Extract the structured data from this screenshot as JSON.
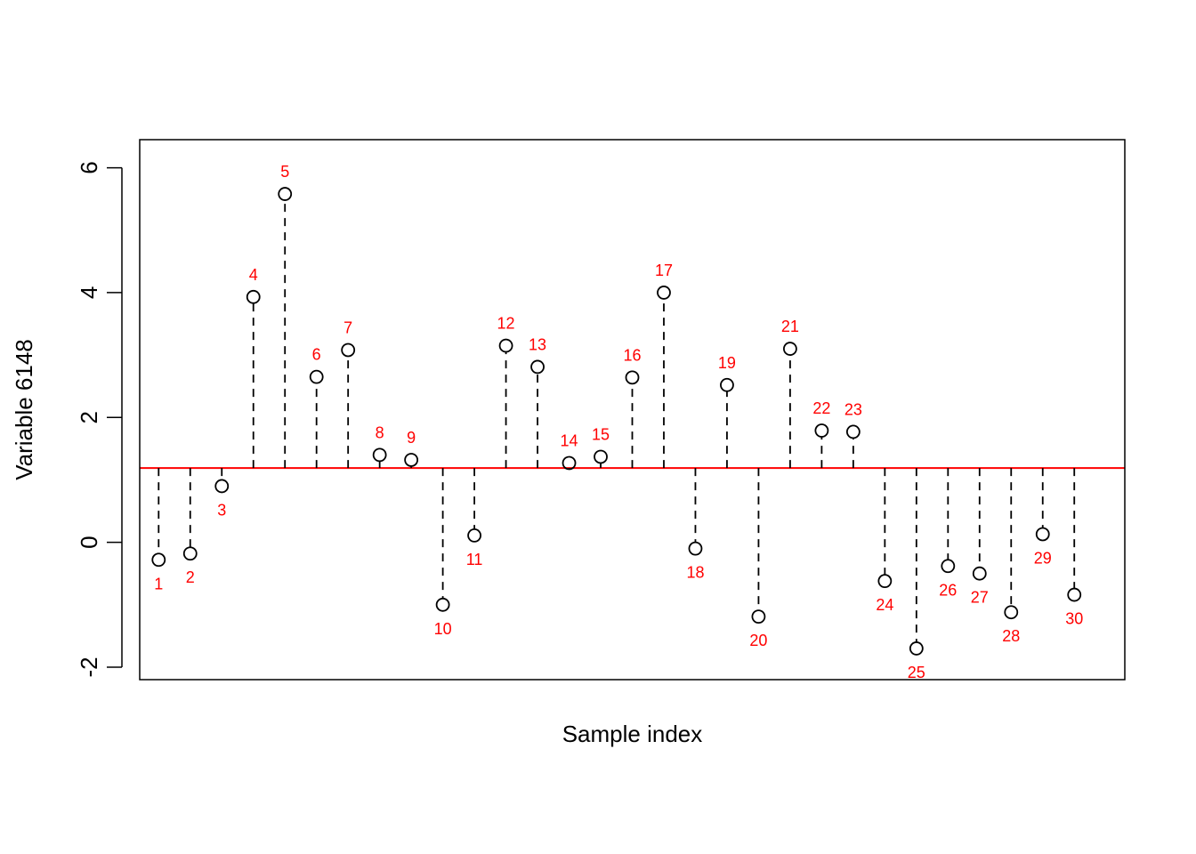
{
  "chart_data": {
    "type": "scatter",
    "xlabel": "Sample index",
    "ylabel": "Variable 6148",
    "xlim": [
      0.4,
      31.6
    ],
    "ylim": [
      -2.2,
      6.45
    ],
    "yticks": [
      -2,
      0,
      2,
      4,
      6
    ],
    "reference_line": {
      "y": 1.19,
      "color": "#FF0000"
    },
    "point_color": "#000000",
    "label_color": "#FF0000",
    "stem_style": "dashed",
    "points": [
      {
        "x": 1,
        "y": -0.28,
        "label": "1"
      },
      {
        "x": 2,
        "y": -0.18,
        "label": "2"
      },
      {
        "x": 3,
        "y": 0.9,
        "label": "3"
      },
      {
        "x": 4,
        "y": 3.93,
        "label": "4"
      },
      {
        "x": 5,
        "y": 5.58,
        "label": "5"
      },
      {
        "x": 6,
        "y": 2.65,
        "label": "6"
      },
      {
        "x": 7,
        "y": 3.08,
        "label": "7"
      },
      {
        "x": 8,
        "y": 1.4,
        "label": "8"
      },
      {
        "x": 9,
        "y": 1.32,
        "label": "9"
      },
      {
        "x": 10,
        "y": -1.0,
        "label": "10"
      },
      {
        "x": 11,
        "y": 0.11,
        "label": "11"
      },
      {
        "x": 12,
        "y": 3.15,
        "label": "12"
      },
      {
        "x": 13,
        "y": 2.81,
        "label": "13"
      },
      {
        "x": 14,
        "y": 1.27,
        "label": "14"
      },
      {
        "x": 15,
        "y": 1.37,
        "label": "15"
      },
      {
        "x": 16,
        "y": 2.64,
        "label": "16"
      },
      {
        "x": 17,
        "y": 4.0,
        "label": "17"
      },
      {
        "x": 18,
        "y": -0.1,
        "label": "18"
      },
      {
        "x": 19,
        "y": 2.52,
        "label": "19"
      },
      {
        "x": 20,
        "y": -1.19,
        "label": "20"
      },
      {
        "x": 21,
        "y": 3.1,
        "label": "21"
      },
      {
        "x": 22,
        "y": 1.79,
        "label": "22"
      },
      {
        "x": 23,
        "y": 1.77,
        "label": "23"
      },
      {
        "x": 24,
        "y": -0.62,
        "label": "24"
      },
      {
        "x": 25,
        "y": -1.7,
        "label": "25"
      },
      {
        "x": 26,
        "y": -0.38,
        "label": "26"
      },
      {
        "x": 27,
        "y": -0.5,
        "label": "27"
      },
      {
        "x": 28,
        "y": -1.12,
        "label": "28"
      },
      {
        "x": 29,
        "y": 0.13,
        "label": "29"
      },
      {
        "x": 30,
        "y": -0.84,
        "label": "30"
      }
    ]
  }
}
